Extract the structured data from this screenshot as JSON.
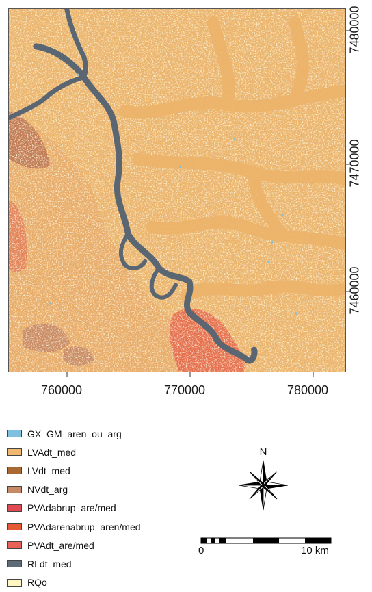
{
  "map": {
    "x_ticks": [
      "760000",
      "770000",
      "780000"
    ],
    "y_ticks": [
      "7480000",
      "7470000",
      "7460000"
    ]
  },
  "legend": [
    {
      "label": "GX_GM_aren_ou_arg",
      "color": "#7fbfe0"
    },
    {
      "label": "LVAdt_med",
      "color": "#f0b870"
    },
    {
      "label": "LVdt_med",
      "color": "#a86a32"
    },
    {
      "label": "NVdt_arg",
      "color": "#c88a66"
    },
    {
      "label": "PVAdabrup_are/med",
      "color": "#e04a52"
    },
    {
      "label": "PVAdarenabrup_aren/med",
      "color": "#e35a34"
    },
    {
      "label": "PVAdt_are/med",
      "color": "#e8625a"
    },
    {
      "label": "RLdt_med",
      "color": "#5e6b78"
    },
    {
      "label": "RQo",
      "color": "#fff7c2"
    }
  ],
  "north_arrow": {
    "label": "N"
  },
  "scale_bar": {
    "start_label": "0",
    "end_label": "10 km"
  }
}
